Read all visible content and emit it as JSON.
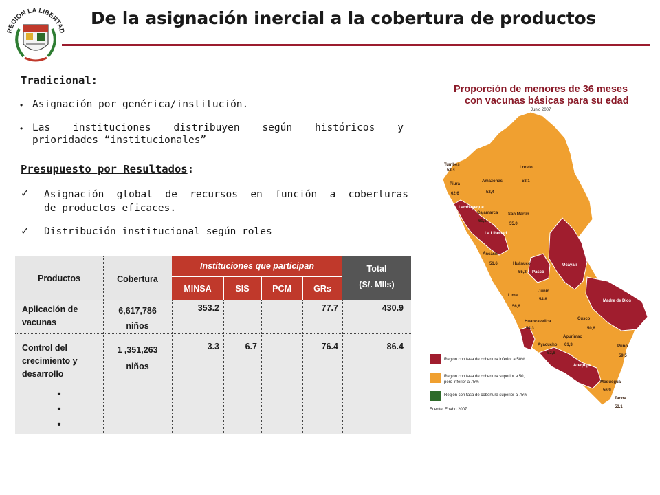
{
  "header": {
    "title": "De la asignación inercial a la cobertura de productos",
    "logo_text": "REGION LA LIBERTAD"
  },
  "traditional": {
    "heading": "Tradicional",
    "heading_suffix": ":",
    "bullets": [
      "Asignación por genérica/institución.",
      "Las instituciones distribuyen según históricos y prioridades “institucionales”"
    ],
    "bullet2_line1_words": [
      "Las",
      "instituciones",
      "distribuyen",
      "según",
      "históricos",
      "y"
    ],
    "bullet2_line2": "prioridades “institucionales”"
  },
  "ppr": {
    "heading": "Presupuesto por Resultados",
    "heading_suffix": ":",
    "items": [
      "Asignación global de recursos en función a coberturas de productos eficaces.",
      "Distribución institucional según roles"
    ],
    "item1_line1_words": [
      "Asignación",
      "global",
      "de",
      "recursos",
      "en",
      "función",
      "a",
      "coberturas"
    ],
    "item1_line2": "de productos eficaces."
  },
  "table": {
    "headers": {
      "productos": "Productos",
      "cobertura": "Cobertura",
      "instituciones": "Instituciones que participan",
      "total": "Total",
      "total_unit": "(S/. Mlls)",
      "minsa": "MINSA",
      "sis": "SIS",
      "pcm": "PCM",
      "grs": "GRs"
    },
    "rows": [
      {
        "producto": "Aplicación de vacunas",
        "producto_lines": [
          "Aplicación de",
          "vacunas"
        ],
        "cobertura": "6,617,786",
        "cobertura_unit": "niños",
        "minsa": "353.2",
        "sis": "",
        "pcm": "",
        "grs": "77.7",
        "total": "430.9"
      },
      {
        "producto": "Control del crecimiento y desarrollo",
        "producto_lines": [
          "Control del",
          "crecimiento y",
          "desarrollo"
        ],
        "cobertura": "1 ,351,263",
        "cobertura_unit": "niños",
        "minsa": "3.3",
        "sis": "6.7",
        "pcm": "",
        "grs": "76.4",
        "total": "86.4"
      }
    ],
    "ellipsis": "•"
  },
  "map": {
    "title_line1": "Proporción de menores de 36 meses",
    "title_line2": "con vacunas básicas para su edad",
    "date": "Junio 2007",
    "colors": {
      "low": "#a01d2e",
      "mid": "#f0a030",
      "high": "#2e6b2a"
    },
    "regions": [
      {
        "name": "Tumbes",
        "value": "52,4"
      },
      {
        "name": "Piura",
        "value": "62,6"
      },
      {
        "name": "Lambayeque",
        "value": ""
      },
      {
        "name": "Amazonas",
        "value": "52,4"
      },
      {
        "name": "Loreto",
        "value": "58,1"
      },
      {
        "name": "Cajamarca",
        "value": "60,1"
      },
      {
        "name": "San Martín",
        "value": "55,0"
      },
      {
        "name": "La Libertad",
        "value": ""
      },
      {
        "name": "Áncash",
        "value": "51,6"
      },
      {
        "name": "Huánuco",
        "value": "55,2"
      },
      {
        "name": "Pasco",
        "value": ""
      },
      {
        "name": "Ucayali",
        "value": ""
      },
      {
        "name": "Lima",
        "value": "56,6"
      },
      {
        "name": "Junín",
        "value": "54,8"
      },
      {
        "name": "Madre de Dios",
        "value": ""
      },
      {
        "name": "Huancavelica",
        "value": "54,3"
      },
      {
        "name": "Cusco",
        "value": "50,6"
      },
      {
        "name": "Ayacucho",
        "value": "52,8"
      },
      {
        "name": "Apurímac",
        "value": "61,3"
      },
      {
        "name": "Puno",
        "value": "59,5"
      },
      {
        "name": "Arequipa",
        "value": ""
      },
      {
        "name": "Moquegua",
        "value": "56,9"
      },
      {
        "name": "Tacna",
        "value": "53,1"
      },
      {
        "name": "Ica",
        "value": ""
      }
    ],
    "legend": [
      {
        "label_line1": "Región con tasa de cobertura inferior a 50%",
        "label_line2": ""
      },
      {
        "label_line1": "Región con tasa de cobertura superior a 50,",
        "label_line2": "pero inferior a 75%"
      },
      {
        "label_line1": "Región con tasa de cobertura superior a 75%",
        "label_line2": ""
      }
    ],
    "source": "Fuente: Enaho 2007"
  }
}
